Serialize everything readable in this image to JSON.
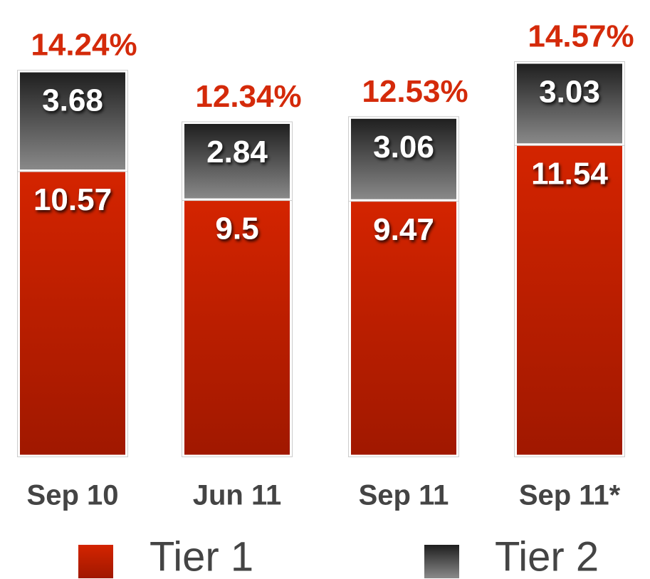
{
  "chart_data": {
    "type": "stacked_bar",
    "categories": [
      "Sep 10",
      "Jun 11",
      "Sep 11",
      "Sep 11*"
    ],
    "series": [
      {
        "name": "Tier 1",
        "color": "#c41e00",
        "values": [
          10.57,
          9.5,
          9.47,
          11.54
        ]
      },
      {
        "name": "Tier 2",
        "color": "#3a3a3a",
        "values": [
          3.68,
          2.84,
          3.06,
          3.03
        ]
      }
    ],
    "totals": {
      "values": [
        14.24,
        12.34,
        12.53,
        14.57
      ],
      "value_labels": [
        "14.24%",
        "12.34%",
        "12.53%",
        "14.57%"
      ]
    }
  }
}
